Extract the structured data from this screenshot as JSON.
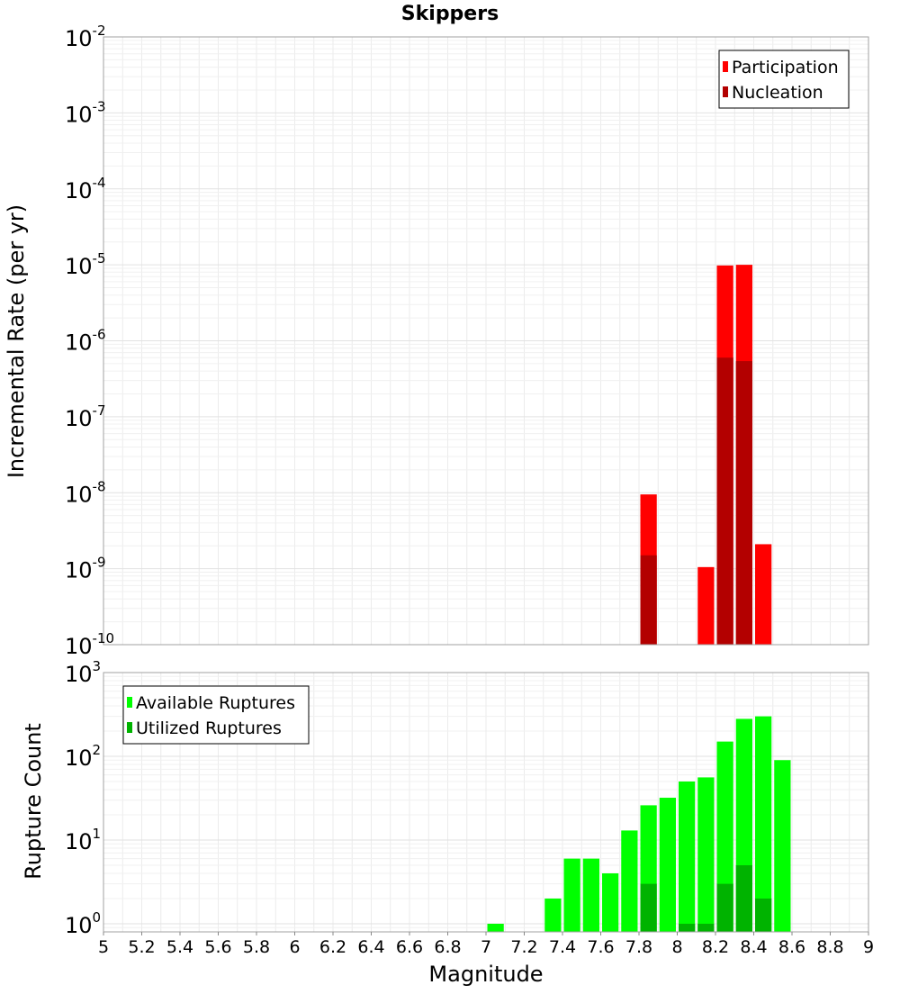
{
  "chart_data": [
    {
      "type": "bar",
      "title": "Skippers",
      "xlabel": "",
      "ylabel": "Incremental Rate (per yr)",
      "yscale": "log",
      "ylim": [
        1e-10,
        0.01
      ],
      "xlim": [
        5,
        9
      ],
      "grid": true,
      "legend": "top-right",
      "ytick_labels": [
        {
          "base": "10",
          "exp": "-10",
          "value": 1e-10
        },
        {
          "base": "10",
          "exp": "-9",
          "value": 1e-09
        },
        {
          "base": "10",
          "exp": "-8",
          "value": 1e-08
        },
        {
          "base": "10",
          "exp": "-7",
          "value": 1e-07
        },
        {
          "base": "10",
          "exp": "-6",
          "value": 1e-06
        },
        {
          "base": "10",
          "exp": "-5",
          "value": 1e-05
        },
        {
          "base": "10",
          "exp": "-4",
          "value": 0.0001
        },
        {
          "base": "10",
          "exp": "-3",
          "value": 0.001
        },
        {
          "base": "10",
          "exp": "-2",
          "value": 0.01
        }
      ],
      "series": [
        {
          "name": "Participation",
          "color": "#ff0000",
          "points": [
            {
              "x": 7.85,
              "y": 9.5e-09
            },
            {
              "x": 8.15,
              "y": 1.05e-09
            },
            {
              "x": 8.25,
              "y": 9.8e-06
            },
            {
              "x": 8.35,
              "y": 1e-05
            },
            {
              "x": 8.45,
              "y": 2.1e-09
            }
          ]
        },
        {
          "name": "Nucleation",
          "color": "#b30000",
          "points": [
            {
              "x": 7.85,
              "y": 1.5e-09
            },
            {
              "x": 8.25,
              "y": 6e-07
            },
            {
              "x": 8.35,
              "y": 5.4e-07
            }
          ]
        }
      ]
    },
    {
      "type": "bar",
      "title": "",
      "xlabel": "Magnitude",
      "ylabel": "Rupture Count",
      "yscale": "log",
      "ylim": [
        0.8,
        1000
      ],
      "xlim": [
        5,
        9
      ],
      "grid": true,
      "legend": "top-left",
      "ytick_labels": [
        {
          "base": "10",
          "exp": "0",
          "value": 1
        },
        {
          "base": "10",
          "exp": "1",
          "value": 10
        },
        {
          "base": "10",
          "exp": "2",
          "value": 100
        },
        {
          "base": "10",
          "exp": "3",
          "value": 1000
        }
      ],
      "xtick_labels": [
        "5",
        "5.2",
        "5.4",
        "5.6",
        "5.8",
        "6",
        "6.2",
        "6.4",
        "6.6",
        "6.8",
        "7",
        "7.2",
        "7.4",
        "7.6",
        "7.8",
        "8",
        "8.2",
        "8.4",
        "8.6",
        "8.8",
        "9"
      ],
      "xtick_values": [
        5,
        5.2,
        5.4,
        5.6,
        5.8,
        6,
        6.2,
        6.4,
        6.6,
        6.8,
        7,
        7.2,
        7.4,
        7.6,
        7.8,
        8,
        8.2,
        8.4,
        8.6,
        8.8,
        9
      ],
      "series": [
        {
          "name": "Available Ruptures",
          "color": "#00ff00",
          "points": [
            {
              "x": 7.05,
              "y": 1
            },
            {
              "x": 7.35,
              "y": 2
            },
            {
              "x": 7.45,
              "y": 6
            },
            {
              "x": 7.55,
              "y": 6
            },
            {
              "x": 7.65,
              "y": 4
            },
            {
              "x": 7.75,
              "y": 13
            },
            {
              "x": 7.85,
              "y": 26
            },
            {
              "x": 7.95,
              "y": 32
            },
            {
              "x": 8.05,
              "y": 50
            },
            {
              "x": 8.15,
              "y": 56
            },
            {
              "x": 8.25,
              "y": 150
            },
            {
              "x": 8.35,
              "y": 280
            },
            {
              "x": 8.45,
              "y": 300
            },
            {
              "x": 8.55,
              "y": 90
            }
          ]
        },
        {
          "name": "Utilized Ruptures",
          "color": "#00b300",
          "points": [
            {
              "x": 7.85,
              "y": 3
            },
            {
              "x": 8.05,
              "y": 1
            },
            {
              "x": 8.15,
              "y": 1
            },
            {
              "x": 8.25,
              "y": 3
            },
            {
              "x": 8.35,
              "y": 5
            },
            {
              "x": 8.45,
              "y": 2
            }
          ]
        }
      ]
    }
  ]
}
